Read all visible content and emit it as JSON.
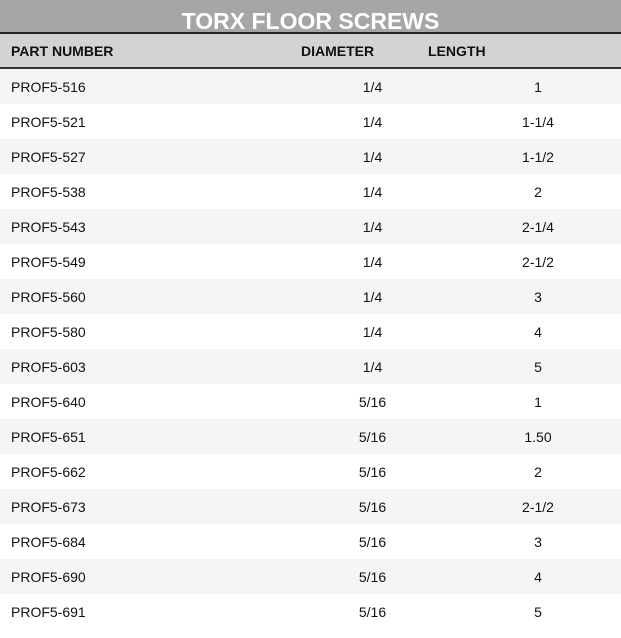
{
  "title": "TORX FLOOR SCREWS",
  "columns": [
    "PART NUMBER",
    "DIAMETER",
    "LENGTH"
  ],
  "rows": [
    [
      "PROF5-516",
      "1/4",
      "1"
    ],
    [
      "PROF5-521",
      "1/4",
      "1-1/4"
    ],
    [
      "PROF5-527",
      "1/4",
      "1-1/2"
    ],
    [
      "PROF5-538",
      "1/4",
      "2"
    ],
    [
      "PROF5-543",
      "1/4",
      "2-1/4"
    ],
    [
      "PROF5-549",
      "1/4",
      "2-1/2"
    ],
    [
      "PROF5-560",
      "1/4",
      "3"
    ],
    [
      "PROF5-580",
      "1/4",
      "4"
    ],
    [
      "PROF5-603",
      "1/4",
      "5"
    ],
    [
      "PROF5-640",
      "5/16",
      "1"
    ],
    [
      "PROF5-651",
      "5/16",
      "1.50"
    ],
    [
      "PROF5-662",
      "5/16",
      "2"
    ],
    [
      "PROF5-673",
      "5/16",
      "2-1/2"
    ],
    [
      "PROF5-684",
      "5/16",
      "3"
    ],
    [
      "PROF5-690",
      "5/16",
      "4"
    ],
    [
      "PROF5-691",
      "5/16",
      "5"
    ]
  ]
}
